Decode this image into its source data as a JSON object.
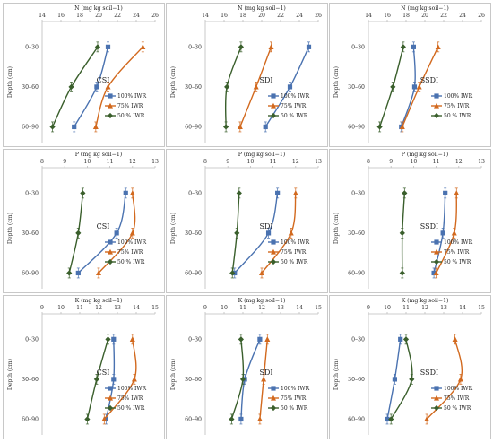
{
  "colors": {
    "100% IWR": "#4a72b0",
    "75% IWR": "#d2691e",
    "50 % IWR": "#3a5f2c"
  },
  "chart_data": [
    {
      "type": "line",
      "axis_label": "N (mg kg soil−1)",
      "xlim": [
        14,
        26
      ],
      "xticks": [
        14,
        16,
        18,
        20,
        22,
        24,
        26
      ],
      "ylabel": "Depth (cm)",
      "depths": [
        "0–30",
        "30–60",
        "60–90"
      ],
      "method": "CSI",
      "series": [
        {
          "name": "100% IWR",
          "values": [
            21.0,
            19.8,
            17.4
          ],
          "errors": [
            0.4,
            0.4,
            0.4
          ]
        },
        {
          "name": "75% IWR",
          "values": [
            24.7,
            21.0,
            19.7
          ],
          "errors": [
            0.4,
            0.4,
            0.4
          ]
        },
        {
          "name": "50 % IWR",
          "values": [
            19.9,
            17.1,
            15.1
          ],
          "errors": [
            0.4,
            0.4,
            0.4
          ]
        }
      ]
    },
    {
      "type": "line",
      "axis_label": "N (mg kg soil−1)",
      "xlim": [
        14,
        26
      ],
      "xticks": [
        14,
        16,
        18,
        20,
        22,
        24,
        26
      ],
      "ylabel": "Depth (cm)",
      "depths": [
        "0–30",
        "30–60",
        "60–90"
      ],
      "method": "SDI",
      "series": [
        {
          "name": "100% IWR",
          "values": [
            25.0,
            23.0,
            20.4
          ],
          "errors": [
            0.4,
            0.4,
            0.4
          ]
        },
        {
          "name": "75% IWR",
          "values": [
            21.0,
            19.4,
            17.7
          ],
          "errors": [
            0.4,
            0.4,
            0.4
          ]
        },
        {
          "name": "50 % IWR",
          "values": [
            17.8,
            16.3,
            16.2
          ],
          "errors": [
            0.4,
            0.4,
            0.4
          ]
        }
      ]
    },
    {
      "type": "line",
      "axis_label": "N (mg kg soil−1)",
      "xlim": [
        14,
        26
      ],
      "xticks": [
        14,
        16,
        18,
        20,
        22,
        24,
        26
      ],
      "ylabel": "Depth (cm)",
      "depths": [
        "0–30",
        "30–60",
        "60–90"
      ],
      "method": "SSDI",
      "series": [
        {
          "name": "100% IWR",
          "values": [
            18.8,
            18.9,
            17.5
          ],
          "errors": [
            0.4,
            0.4,
            0.4
          ]
        },
        {
          "name": "75% IWR",
          "values": [
            21.4,
            19.4,
            17.6
          ],
          "errors": [
            0.4,
            0.4,
            0.4
          ]
        },
        {
          "name": "50 % IWR",
          "values": [
            17.7,
            16.6,
            15.2
          ],
          "errors": [
            0.4,
            0.4,
            0.4
          ]
        }
      ]
    },
    {
      "type": "line",
      "axis_label": "P (mg kg soil−1)",
      "xlim": [
        8,
        13
      ],
      "xticks": [
        8,
        9,
        10,
        11,
        12,
        13
      ],
      "ylabel": "Depth (cm)",
      "depths": [
        "0–30",
        "30–60",
        "60–90"
      ],
      "method": "CSI",
      "series": [
        {
          "name": "100% IWR",
          "values": [
            11.7,
            11.3,
            9.6
          ],
          "errors": [
            0.15,
            0.15,
            0.15
          ]
        },
        {
          "name": "75% IWR",
          "values": [
            12.0,
            12.0,
            10.5
          ],
          "errors": [
            0.15,
            0.15,
            0.15
          ]
        },
        {
          "name": "50 % IWR",
          "values": [
            9.8,
            9.6,
            9.2
          ],
          "errors": [
            0.15,
            0.15,
            0.15
          ]
        }
      ]
    },
    {
      "type": "line",
      "axis_label": "P (mg kg soil−1)",
      "xlim": [
        8,
        13
      ],
      "xticks": [
        8,
        9,
        10,
        11,
        12,
        13
      ],
      "ylabel": "Depth (cm)",
      "depths": [
        "0–30",
        "30–60",
        "60–90"
      ],
      "method": "SDI",
      "series": [
        {
          "name": "100% IWR",
          "values": [
            11.2,
            10.8,
            9.3
          ],
          "errors": [
            0.15,
            0.15,
            0.15
          ]
        },
        {
          "name": "75% IWR",
          "values": [
            12.0,
            11.8,
            10.5
          ],
          "errors": [
            0.15,
            0.15,
            0.15
          ]
        },
        {
          "name": "50 % IWR",
          "values": [
            9.5,
            9.4,
            9.2
          ],
          "errors": [
            0.15,
            0.15,
            0.15
          ]
        }
      ]
    },
    {
      "type": "line",
      "axis_label": "P (mg kg soil−1)",
      "xlim": [
        8,
        13
      ],
      "xticks": [
        8,
        9,
        10,
        11,
        12,
        13
      ],
      "ylabel": "Depth (cm)",
      "depths": [
        "0–30",
        "30–60",
        "60–90"
      ],
      "method": "SSDI",
      "series": [
        {
          "name": "100% IWR",
          "values": [
            11.4,
            11.3,
            10.9
          ],
          "errors": [
            0.15,
            0.15,
            0.15
          ]
        },
        {
          "name": "75% IWR",
          "values": [
            11.9,
            11.8,
            11.0
          ],
          "errors": [
            0.15,
            0.15,
            0.15
          ]
        },
        {
          "name": "50 % IWR",
          "values": [
            9.6,
            9.5,
            9.5
          ],
          "errors": [
            0.15,
            0.15,
            0.15
          ]
        }
      ]
    },
    {
      "type": "line",
      "axis_label": "K (mg kg soil−1)",
      "xlim": [
        9,
        15
      ],
      "xticks": [
        9,
        10,
        11,
        12,
        13,
        14,
        15
      ],
      "ylabel": "Depth (cm)",
      "depths": [
        "0–30",
        "30–60",
        "60–90"
      ],
      "method": "CSI",
      "series": [
        {
          "name": "100% IWR",
          "values": [
            12.8,
            12.8,
            12.4
          ],
          "errors": [
            0.15,
            0.15,
            0.15
          ]
        },
        {
          "name": "75% IWR",
          "values": [
            13.8,
            13.9,
            12.3
          ],
          "errors": [
            0.15,
            0.15,
            0.15
          ]
        },
        {
          "name": "50 % IWR",
          "values": [
            12.5,
            11.9,
            11.4
          ],
          "errors": [
            0.15,
            0.15,
            0.15
          ]
        }
      ]
    },
    {
      "type": "line",
      "axis_label": "K (mg kg soil−1)",
      "xlim": [
        9,
        15
      ],
      "xticks": [
        9,
        10,
        11,
        12,
        13,
        14,
        15
      ],
      "ylabel": "Depth (cm)",
      "depths": [
        "0–30",
        "30–60",
        "60–90"
      ],
      "method": "SDI",
      "series": [
        {
          "name": "100% IWR",
          "values": [
            11.9,
            11.1,
            10.9
          ],
          "errors": [
            0.15,
            0.15,
            0.15
          ]
        },
        {
          "name": "75% IWR",
          "values": [
            12.3,
            12.1,
            11.9
          ],
          "errors": [
            0.15,
            0.15,
            0.15
          ]
        },
        {
          "name": "50 % IWR",
          "values": [
            10.9,
            11.0,
            10.4
          ],
          "errors": [
            0.15,
            0.15,
            0.15
          ]
        }
      ]
    },
    {
      "type": "line",
      "axis_label": "K (mg kg soil−1)",
      "xlim": [
        9,
        15
      ],
      "xticks": [
        9,
        10,
        11,
        12,
        13,
        14,
        15
      ],
      "ylabel": "Depth (cm)",
      "depths": [
        "0–30",
        "30–60",
        "60–90"
      ],
      "method": "SSDI",
      "series": [
        {
          "name": "100% IWR",
          "values": [
            10.7,
            10.4,
            10.0
          ],
          "errors": [
            0.15,
            0.15,
            0.15
          ]
        },
        {
          "name": "75% IWR",
          "values": [
            13.6,
            13.9,
            12.1
          ],
          "errors": [
            0.15,
            0.15,
            0.15
          ]
        },
        {
          "name": "50 % IWR",
          "values": [
            11.0,
            11.3,
            10.2
          ],
          "errors": [
            0.15,
            0.15,
            0.15
          ]
        }
      ]
    }
  ]
}
